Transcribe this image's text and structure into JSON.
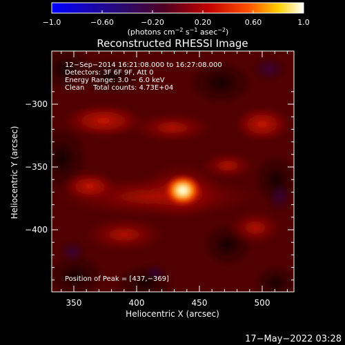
{
  "colorbar": {
    "ticks": [
      "−1.0",
      "−0.60",
      "−0.20",
      "0.20",
      "0.60",
      "1.0"
    ],
    "unit_main": "(photons cm",
    "unit_exp1": "−2",
    "unit_mid": " s",
    "unit_exp2": "−1",
    "unit_mid2": " asec",
    "unit_exp3": "−2",
    "unit_end": ")",
    "colors": [
      "#0000ff",
      "#3a0a5a",
      "#600018",
      "#c00000",
      "#ff5000",
      "#ffd000",
      "#ffffff"
    ]
  },
  "title": "Reconstructed RHESSI Image",
  "info": {
    "line1": "12−Sep−2014 16:21:08.000 to 16:27:08.000",
    "line2": "Detectors: 3F 6F 9F, Att 0",
    "line3": "Energy Range: 3.0 − 6.0 keV",
    "line4": "Clean    Total counts: 4.73E+04"
  },
  "peak_label": "Position of Peak = [437,−369]",
  "axes": {
    "xlabel": "Heliocentric X (arcsec)",
    "ylabel": "Heliocentric Y (arcsec)",
    "xticks": [
      "350",
      "400",
      "450",
      "500"
    ],
    "yticks": [
      "−300",
      "−350",
      "−400"
    ]
  },
  "timestamp": "17−May−2022 03:28"
}
